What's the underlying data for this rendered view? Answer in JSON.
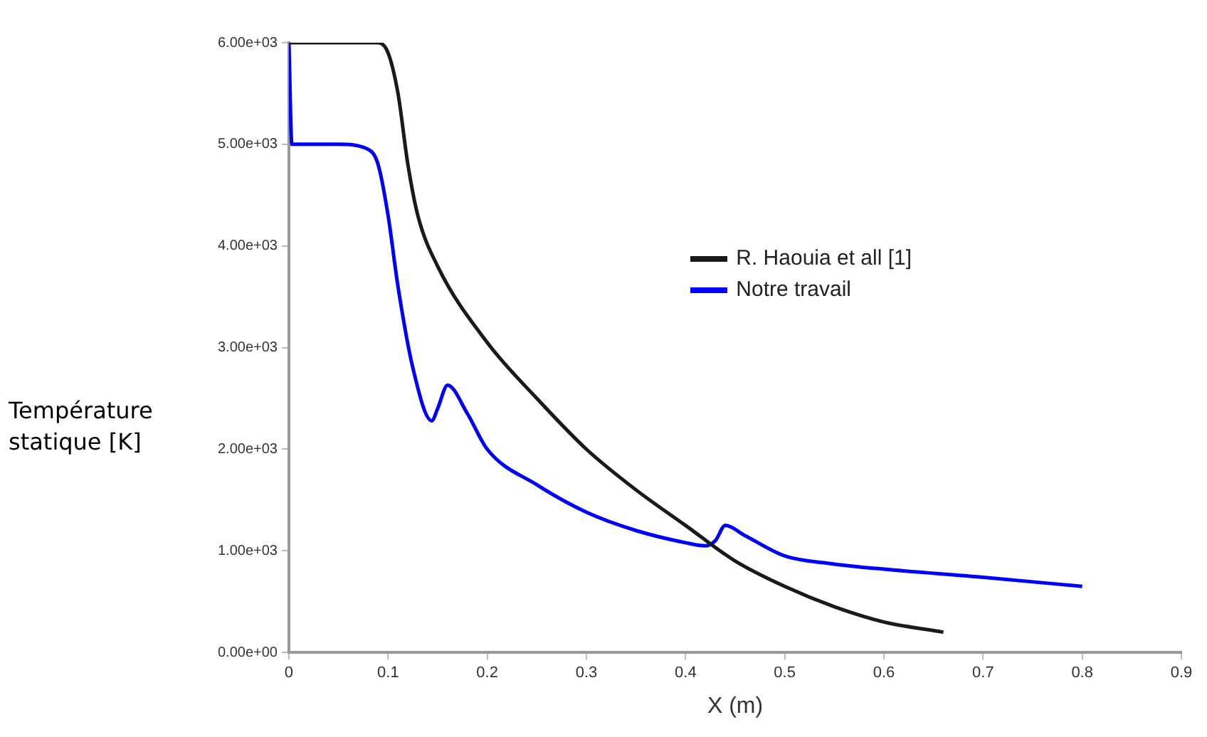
{
  "chart_data": {
    "type": "line",
    "xlabel": "X (m)",
    "ylabel": "Température statique [K]",
    "xlim": [
      0,
      0.9
    ],
    "xticks": [
      0,
      0.1,
      0.2,
      0.3,
      0.4,
      0.5,
      0.6,
      0.7,
      0.8,
      0.9
    ],
    "ylim": [
      0,
      6000
    ],
    "yticks": [
      {
        "value": 0,
        "label": "0.00e+00"
      },
      {
        "value": 1000,
        "label": "1.00e+03"
      },
      {
        "value": 2000,
        "label": "2.00e+03"
      },
      {
        "value": 3000,
        "label": "3.00e+03"
      },
      {
        "value": 4000,
        "label": "4.00e+03"
      },
      {
        "value": 5000,
        "label": "5.00e+03"
      },
      {
        "value": 6000,
        "label": "6.00e+03"
      }
    ],
    "grid": false,
    "legend": "right",
    "marker": "none",
    "line_style": "solid",
    "series": [
      {
        "name": "R. Haouia et all [1]",
        "color": "#1a1a1a",
        "x": [
          0,
          0.05,
          0.09,
          0.1,
          0.11,
          0.12,
          0.13,
          0.15,
          0.2,
          0.25,
          0.3,
          0.35,
          0.4,
          0.45,
          0.5,
          0.55,
          0.6,
          0.66
        ],
        "values": [
          6000,
          6000,
          6000,
          5900,
          5500,
          4800,
          4300,
          3800,
          3050,
          2500,
          2000,
          1600,
          1250,
          900,
          650,
          450,
          300,
          200
        ]
      },
      {
        "name": "Notre travail",
        "color": "#0000ff",
        "x": [
          0,
          0.003,
          0.05,
          0.08,
          0.09,
          0.1,
          0.11,
          0.125,
          0.144,
          0.15,
          0.16,
          0.18,
          0.2,
          0.25,
          0.3,
          0.35,
          0.4,
          0.42,
          0.43,
          0.44,
          0.46,
          0.5,
          0.55,
          0.6,
          0.7,
          0.8
        ],
        "values": [
          6000,
          5000,
          5000,
          4950,
          4800,
          4300,
          3600,
          2800,
          2280,
          2400,
          2630,
          2350,
          2000,
          1650,
          1380,
          1200,
          1080,
          1050,
          1100,
          1250,
          1150,
          950,
          870,
          820,
          740,
          650
        ]
      }
    ]
  }
}
